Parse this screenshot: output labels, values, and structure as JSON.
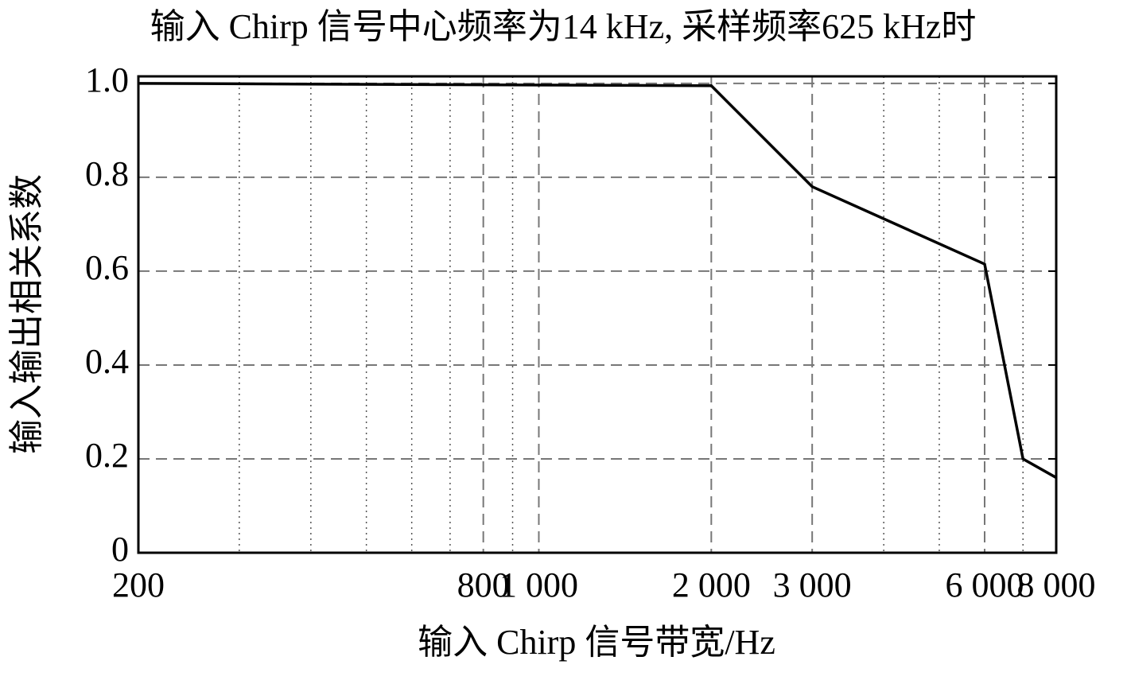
{
  "chart_data": {
    "type": "line",
    "title": "输入  Chirp 信号中心频率为14 kHz, 采样频率625 kHz时",
    "x_label": "输入 Chirp 信号带宽/Hz",
    "y_label": "输入输出相关系数",
    "x": [
      200,
      2000,
      3000,
      6000,
      7000,
      8000
    ],
    "series": [
      {
        "color": "#000000",
        "values": [
          1.0,
          0.995,
          0.78,
          0.615,
          0.2,
          0.16
        ]
      }
    ],
    "x_scale": "log",
    "xlim": [
      200,
      8000
    ],
    "xticks": [
      200,
      800,
      {
        "value": 1000,
        "label": "1 000"
      },
      {
        "value": 2000,
        "label": "2 000"
      },
      {
        "value": 3000,
        "label": "3 000"
      },
      {
        "value": 6000,
        "label": "6 000"
      },
      {
        "value": 8000,
        "label": "8 000"
      }
    ],
    "x_minor_ticks": [
      300,
      400,
      500,
      600,
      700,
      900,
      4000,
      5000,
      7000
    ],
    "ylim": [
      0,
      1.015
    ],
    "yticks": [
      0,
      0.2,
      0.4,
      0.6,
      0.8,
      {
        "value": 1.0,
        "label": "1.0"
      }
    ],
    "grid": true
  }
}
